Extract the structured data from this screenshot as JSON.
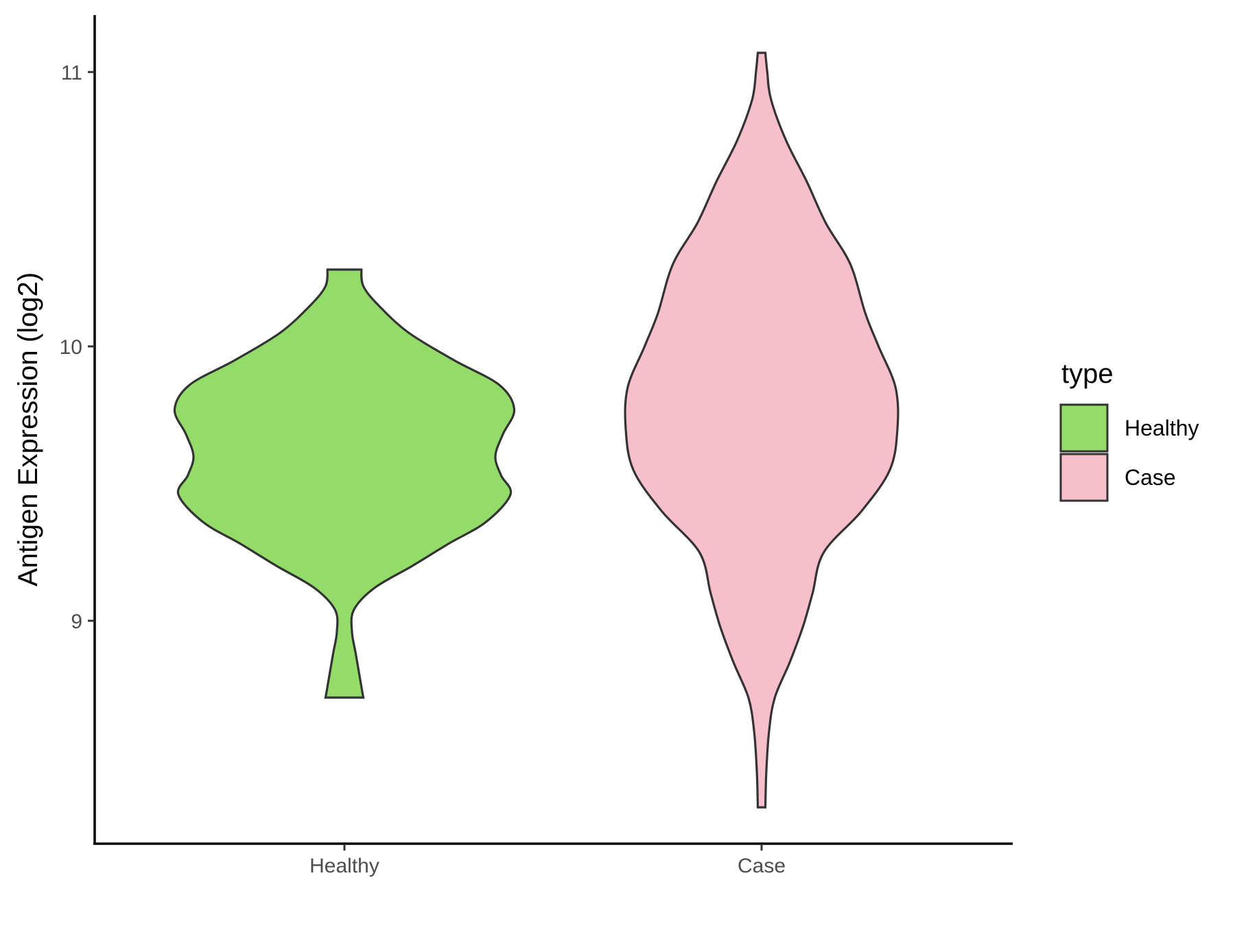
{
  "chart_data": {
    "type": "violin",
    "ylabel": "Antigen Expression (log2)",
    "xlabel": "",
    "categories": [
      "Healthy",
      "Case"
    ],
    "yticks": [
      9,
      10,
      11
    ],
    "ylim": [
      8.22,
      11.2
    ],
    "grid": false,
    "legend": {
      "title": "type",
      "position": "right",
      "entries": [
        {
          "label": "Healthy",
          "color": "#93DC6A"
        },
        {
          "label": "Case",
          "color": "#F7BFCB"
        }
      ]
    },
    "series": [
      {
        "name": "Healthy",
        "color": "#93DC6A",
        "min": 8.72,
        "max": 10.28,
        "profile": [
          [
            8.72,
            0.1
          ],
          [
            8.8,
            0.08
          ],
          [
            8.88,
            0.06
          ],
          [
            8.96,
            0.04
          ],
          [
            9.04,
            0.05
          ],
          [
            9.12,
            0.16
          ],
          [
            9.2,
            0.36
          ],
          [
            9.28,
            0.55
          ],
          [
            9.36,
            0.75
          ],
          [
            9.46,
            0.88
          ],
          [
            9.53,
            0.83
          ],
          [
            9.6,
            0.8
          ],
          [
            9.68,
            0.84
          ],
          [
            9.77,
            0.9
          ],
          [
            9.86,
            0.82
          ],
          [
            9.95,
            0.58
          ],
          [
            10.05,
            0.34
          ],
          [
            10.15,
            0.18
          ],
          [
            10.22,
            0.1
          ],
          [
            10.28,
            0.09
          ]
        ]
      },
      {
        "name": "Case",
        "color": "#F7BFCB",
        "min": 8.32,
        "max": 11.07,
        "profile": [
          [
            8.32,
            0.02
          ],
          [
            8.45,
            0.025
          ],
          [
            8.6,
            0.04
          ],
          [
            8.72,
            0.07
          ],
          [
            8.85,
            0.15
          ],
          [
            8.98,
            0.22
          ],
          [
            9.1,
            0.27
          ],
          [
            9.25,
            0.33
          ],
          [
            9.4,
            0.53
          ],
          [
            9.55,
            0.68
          ],
          [
            9.7,
            0.72
          ],
          [
            9.85,
            0.71
          ],
          [
            10.0,
            0.62
          ],
          [
            10.12,
            0.55
          ],
          [
            10.3,
            0.47
          ],
          [
            10.45,
            0.34
          ],
          [
            10.6,
            0.24
          ],
          [
            10.75,
            0.13
          ],
          [
            10.9,
            0.05
          ],
          [
            11.0,
            0.03
          ],
          [
            11.07,
            0.02
          ]
        ]
      }
    ]
  }
}
